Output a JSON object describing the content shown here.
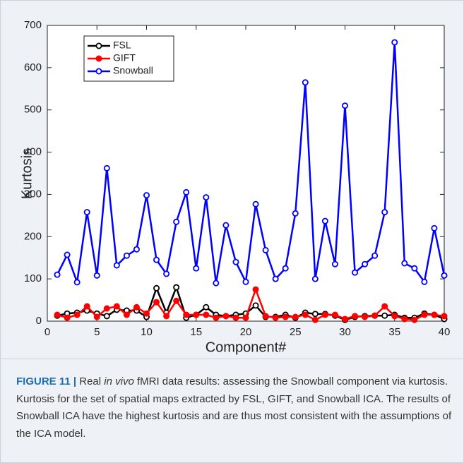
{
  "chart_data": {
    "type": "line",
    "x_label": "Component#",
    "y_label": "Kurtosis",
    "x": [
      1,
      2,
      3,
      4,
      5,
      6,
      7,
      8,
      9,
      10,
      11,
      12,
      13,
      14,
      15,
      16,
      17,
      18,
      19,
      20,
      21,
      22,
      23,
      24,
      25,
      26,
      27,
      28,
      29,
      30,
      31,
      32,
      33,
      34,
      35,
      36,
      37,
      38,
      39,
      40
    ],
    "series": [
      {
        "name": "FSL",
        "color": "#000000",
        "marker_filled": false,
        "values": [
          13,
          18,
          20,
          25,
          18,
          12,
          27,
          25,
          25,
          10,
          78,
          20,
          80,
          8,
          15,
          33,
          15,
          12,
          15,
          18,
          37,
          10,
          10,
          15,
          8,
          20,
          17,
          17,
          13,
          3,
          10,
          12,
          13,
          13,
          15,
          8,
          8,
          18,
          15,
          5
        ]
      },
      {
        "name": "GIFT",
        "color": "#ff0000",
        "marker_filled": true,
        "values": [
          15,
          8,
          15,
          35,
          10,
          30,
          35,
          15,
          33,
          18,
          45,
          12,
          48,
          15,
          15,
          15,
          8,
          12,
          8,
          8,
          75,
          12,
          8,
          10,
          10,
          15,
          3,
          15,
          15,
          5,
          12,
          10,
          13,
          35,
          12,
          5,
          3,
          15,
          15,
          12
        ]
      },
      {
        "name": "Snowball",
        "color": "#0000ff",
        "marker_filled": false,
        "values": [
          110,
          157,
          92,
          258,
          108,
          362,
          132,
          155,
          170,
          298,
          145,
          112,
          235,
          305,
          125,
          293,
          90,
          227,
          140,
          93,
          277,
          168,
          100,
          125,
          255,
          565,
          100,
          237,
          135,
          510,
          115,
          135,
          155,
          258,
          660,
          137,
          125,
          93,
          220,
          108
        ]
      }
    ],
    "xlim": [
      0,
      40
    ],
    "xticks": [
      0,
      5,
      10,
      15,
      20,
      25,
      30,
      35,
      40
    ],
    "ylim": [
      0,
      700
    ],
    "yticks": [
      0,
      100,
      200,
      300,
      400,
      500,
      600,
      700
    ],
    "grid": false,
    "legend": "upper left",
    "caption": {
      "label": "FIGURE 11 |",
      "before": "Real ",
      "italic": "in vivo",
      "after": " fMRI data results: assessing the Snowball component via kurtosis. Kurtosis for the set of spatial maps extracted by FSL, GIFT, and Snowball ICA. The results of Snowball ICA have the highest kurtosis and are thus most consistent with the assumptions of the ICA model."
    }
  }
}
